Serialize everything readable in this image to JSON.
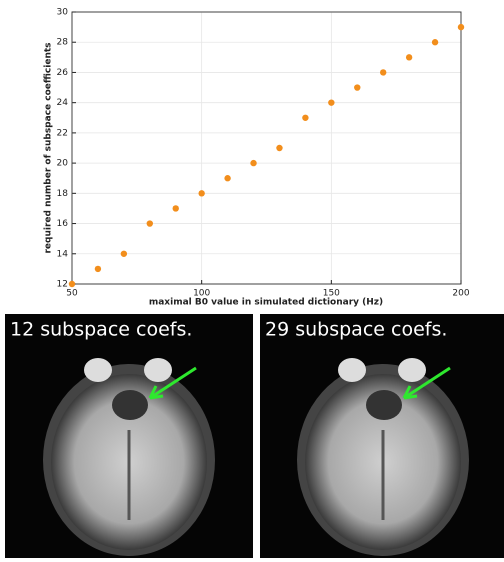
{
  "chart_data": {
    "type": "scatter",
    "x_label": "maximal B0 value in simulated dictionary (Hz)",
    "y_label": "required number of subspace coefficients",
    "x": [
      50,
      60,
      70,
      80,
      90,
      100,
      110,
      120,
      130,
      140,
      150,
      160,
      170,
      180,
      190,
      200
    ],
    "values": [
      12,
      13,
      14,
      16,
      17,
      18,
      19,
      20,
      21,
      23,
      24,
      25,
      26,
      27,
      28,
      29
    ],
    "color": "#f28e1c",
    "xlim": [
      50,
      200
    ],
    "xticks": [
      50,
      100,
      150,
      200
    ],
    "ylim": [
      12,
      30
    ],
    "yticks": [
      12,
      14,
      16,
      18,
      20,
      22,
      24,
      26,
      28,
      30
    ],
    "grid": true
  },
  "images": [
    {
      "label": "12 subspace coefs."
    },
    {
      "label": "29 subspace coefs."
    }
  ]
}
